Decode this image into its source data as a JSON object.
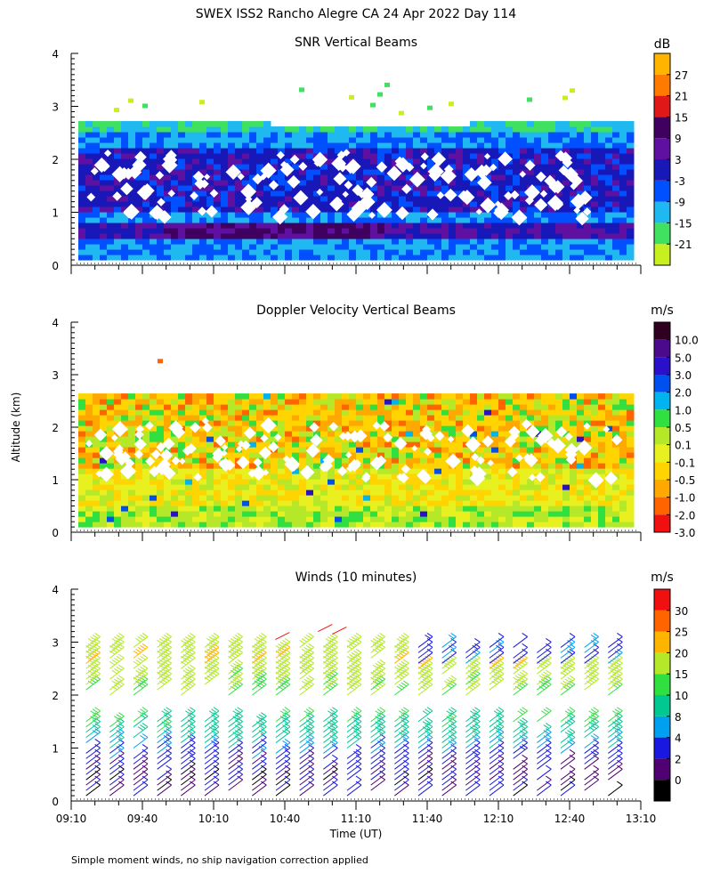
{
  "title": "SWEX ISS2 Rancho Alegre CA  24 Apr 2022 Day 114",
  "footnote": "Simple moment winds, no ship navigation correction applied",
  "xlabel": "Time (UT)",
  "ylabel": "Altitude (km)",
  "x_ticks": [
    "09:10",
    "09:40",
    "10:10",
    "10:40",
    "11:10",
    "11:40",
    "12:10",
    "12:40",
    "13:10"
  ],
  "y_ticks": [
    "0",
    "1",
    "2",
    "3",
    "4"
  ],
  "chart_data": [
    {
      "type": "heatmap",
      "title": "SNR Vertical Beams",
      "units": "dB",
      "xlabel": "Time (UT)",
      "ylabel": "Altitude (km)",
      "xlim": [
        "09:10",
        "13:10"
      ],
      "ylim": [
        0,
        4
      ],
      "colorbar": {
        "labels": [
          "-21",
          "-15",
          "-9",
          "-3",
          "3",
          "9",
          "15",
          "21",
          "27"
        ],
        "colors": [
          "#c8f020",
          "#40e060",
          "#20b8f0",
          "#0050ff",
          "#1818b8",
          "#6010a0",
          "#400060",
          "#e01818",
          "#ff7a00",
          "#ffb400"
        ]
      },
      "layers": [
        {
          "from_km": 0.1,
          "to_km": 0.45,
          "value_db": -9
        },
        {
          "from_km": 0.45,
          "to_km": 0.8,
          "value_db": 3
        },
        {
          "from_km": 0.8,
          "to_km": 1.0,
          "value_db": -9
        },
        {
          "from_km": 1.0,
          "to_km": 2.2,
          "value_db": 0
        },
        {
          "from_km": 2.2,
          "to_km": 2.45,
          "value_db": -9
        },
        {
          "from_km": 2.45,
          "to_km": 2.7,
          "value_db": -15
        }
      ]
    },
    {
      "type": "heatmap",
      "title": "Doppler Velocity Vertical Beams",
      "units": "m/s",
      "xlabel": "Time (UT)",
      "ylabel": "Altitude (km)",
      "xlim": [
        "09:10",
        "13:10"
      ],
      "ylim": [
        0,
        4
      ],
      "colorbar": {
        "labels": [
          "10.0",
          "5.0",
          "3.0",
          "2.0",
          "1.0",
          "0.5",
          "0.1",
          "-0.1",
          "-0.5",
          "-1.0",
          "-2.0",
          "-3.0"
        ],
        "colors": [
          "#300020",
          "#4b0a8c",
          "#2a10c8",
          "#0050f0",
          "#00b4f0",
          "#30e040",
          "#b4e828",
          "#e8f020",
          "#ffd400",
          "#ffa800",
          "#ff6400",
          "#f01010"
        ]
      },
      "layers": [
        {
          "from_km": 0.1,
          "to_km": 0.5,
          "value_ms": 0.1
        },
        {
          "from_km": 0.5,
          "to_km": 1.2,
          "value_ms": -0.3
        },
        {
          "from_km": 1.2,
          "to_km": 2.2,
          "value_ms": -0.5
        },
        {
          "from_km": 2.2,
          "to_km": 2.6,
          "value_ms": -1.0
        }
      ]
    },
    {
      "type": "scatter",
      "subtype": "wind-barbs",
      "title": "Winds (10 minutes)",
      "units": "m/s",
      "xlabel": "Time (UT)",
      "ylabel": "Altitude (km)",
      "xlim": [
        "09:10",
        "13:10"
      ],
      "ylim": [
        0,
        4
      ],
      "colorbar": {
        "labels": [
          "0",
          "2",
          "4",
          "8",
          "10",
          "15",
          "20",
          "25",
          "30"
        ],
        "colors": [
          "#000000",
          "#500070",
          "#1818e0",
          "#00a0f0",
          "#00c890",
          "#30e040",
          "#b4e828",
          "#ffb400",
          "#ff6400",
          "#f01010"
        ]
      },
      "profile_times": [
        "09:20",
        "09:30",
        "09:40",
        "09:50",
        "10:00",
        "10:10",
        "10:20",
        "10:30",
        "10:40",
        "10:50",
        "11:00",
        "11:10",
        "11:20",
        "11:30",
        "11:40",
        "11:50",
        "12:00",
        "12:10",
        "12:20",
        "12:30",
        "12:40",
        "12:50",
        "13:00"
      ],
      "speed_profile": [
        {
          "altitude_km": 0.3,
          "speed_ms": 3
        },
        {
          "altitude_km": 0.8,
          "speed_ms": 6
        },
        {
          "altitude_km": 1.2,
          "speed_ms": 12
        },
        {
          "altitude_km": 1.7,
          "speed_ms": 17
        },
        {
          "altitude_km": 2.2,
          "speed_ms": 21
        },
        {
          "altitude_km": 2.6,
          "speed_ms": 24
        },
        {
          "altitude_km": 2.9,
          "speed_ms": 22
        },
        {
          "altitude_km": 3.2,
          "speed_ms": 28
        }
      ]
    }
  ]
}
